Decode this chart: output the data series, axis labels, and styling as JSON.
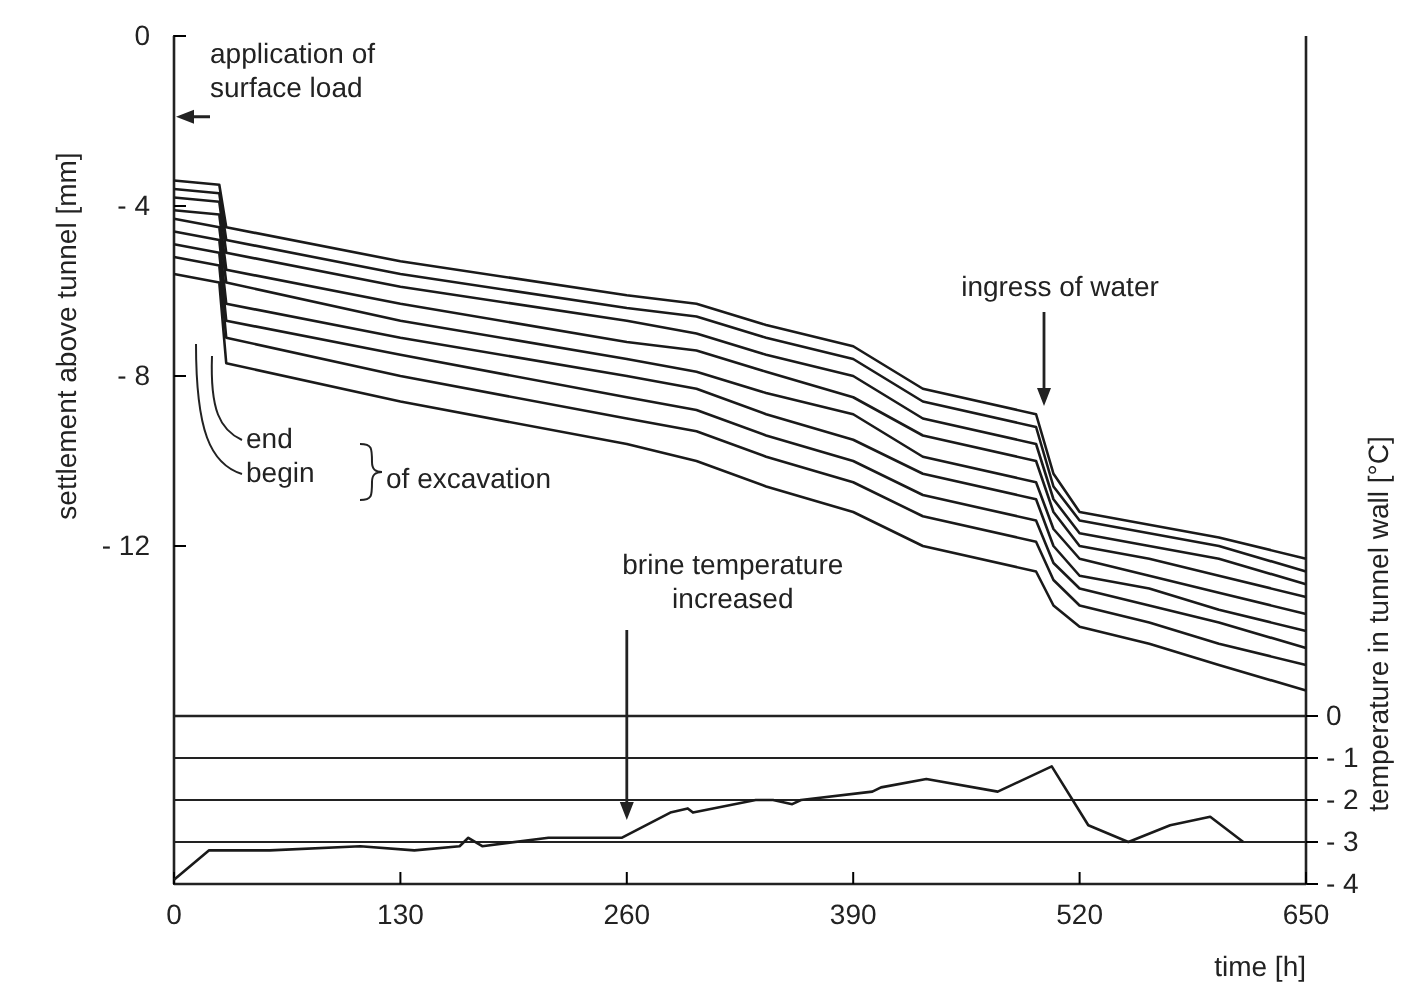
{
  "chart_data": [
    {
      "type": "line",
      "ylabel": "settlement above tunnel [mm]",
      "xlim": [
        0,
        650
      ],
      "ylim": [
        -16,
        0
      ],
      "yticks": [
        0,
        -4,
        -8,
        -12
      ],
      "tick_labels": "y",
      "x": [
        0,
        26,
        30,
        130,
        260,
        300,
        340,
        390,
        430,
        495,
        505,
        520,
        560,
        600,
        650
      ],
      "series": [
        {
          "color": "#1a1a1a",
          "values": [
            -3.4,
            -3.5,
            -4.5,
            -5.3,
            -6.1,
            -6.3,
            -6.8,
            -7.3,
            -8.3,
            -8.9,
            -10.3,
            -11.2,
            -11.5,
            -11.8,
            -12.3
          ]
        },
        {
          "color": "#1a1a1a",
          "values": [
            -3.6,
            -3.7,
            -4.8,
            -5.6,
            -6.4,
            -6.6,
            -7.1,
            -7.6,
            -8.6,
            -9.2,
            -10.6,
            -11.4,
            -11.7,
            -12.0,
            -12.6
          ]
        },
        {
          "color": "#1a1a1a",
          "values": [
            -3.8,
            -3.9,
            -5.1,
            -5.9,
            -6.7,
            -7.0,
            -7.5,
            -8.0,
            -9.0,
            -9.6,
            -10.9,
            -11.7,
            -12.0,
            -12.3,
            -12.9
          ]
        },
        {
          "color": "#1a1a1a",
          "values": [
            -4.1,
            -4.2,
            -5.5,
            -6.3,
            -7.2,
            -7.4,
            -7.9,
            -8.5,
            -9.4,
            -10.0,
            -11.2,
            -12.0,
            -12.3,
            -12.7,
            -13.2
          ]
        },
        {
          "color": "#1a1a1a",
          "values": [
            -4.3,
            -4.5,
            -5.8,
            -6.7,
            -7.6,
            -7.9,
            -8.4,
            -8.9,
            -9.9,
            -10.5,
            -11.6,
            -12.3,
            -12.7,
            -13.1,
            -13.6
          ]
        },
        {
          "color": "#1a1a1a",
          "values": [
            -4.6,
            -4.8,
            -6.3,
            -7.1,
            -8.0,
            -8.3,
            -8.9,
            -9.5,
            -10.3,
            -10.9,
            -12.0,
            -12.7,
            -13.0,
            -13.5,
            -14.0
          ]
        },
        {
          "color": "#1a1a1a",
          "values": [
            -4.9,
            -5.1,
            -6.7,
            -7.5,
            -8.5,
            -8.8,
            -9.4,
            -10.0,
            -10.8,
            -11.4,
            -12.4,
            -13.0,
            -13.4,
            -13.8,
            -14.4
          ]
        },
        {
          "color": "#1a1a1a",
          "values": [
            -5.2,
            -5.4,
            -7.1,
            -8.0,
            -9.0,
            -9.3,
            -9.9,
            -10.5,
            -11.3,
            -11.9,
            -12.8,
            -13.4,
            -13.8,
            -14.3,
            -14.8
          ]
        },
        {
          "color": "#1a1a1a",
          "values": [
            -5.6,
            -5.8,
            -7.7,
            -8.6,
            -9.6,
            -10.0,
            -10.6,
            -11.2,
            -12.0,
            -12.6,
            -13.4,
            -13.9,
            -14.3,
            -14.8,
            -15.4
          ]
        }
      ],
      "annotations": [
        "application of surface load",
        "ingress of water",
        "end",
        "begin",
        "of excavation"
      ]
    },
    {
      "type": "line",
      "xlabel": "time [h]",
      "y2label": "temperature in tunnel wall [°C]",
      "xlim": [
        0,
        650
      ],
      "xticks": [
        0,
        130,
        260,
        390,
        520,
        650
      ],
      "y2lim": [
        -4,
        0
      ],
      "y2ticks": [
        0,
        -1,
        -2,
        -3,
        -4
      ],
      "grid": "y",
      "x": [
        0,
        20,
        55,
        107,
        138,
        164,
        169,
        177,
        215,
        257,
        285,
        295,
        298,
        334,
        344,
        355,
        360,
        401,
        406,
        432,
        473,
        504,
        525,
        548,
        572,
        595,
        614
      ],
      "series": [
        {
          "color": "#1a1a1a",
          "axis": "y2",
          "values": [
            -3.9,
            -3.2,
            -3.2,
            -3.1,
            -3.2,
            -3.1,
            -2.9,
            -3.1,
            -2.9,
            -2.9,
            -2.3,
            -2.2,
            -2.3,
            -2.0,
            -2.0,
            -2.1,
            -2.0,
            -1.8,
            -1.7,
            -1.5,
            -1.8,
            -1.2,
            -2.6,
            -3.0,
            -2.6,
            -2.4,
            -3.0
          ]
        }
      ],
      "annotations": [
        "brine temperature increased"
      ]
    }
  ]
}
